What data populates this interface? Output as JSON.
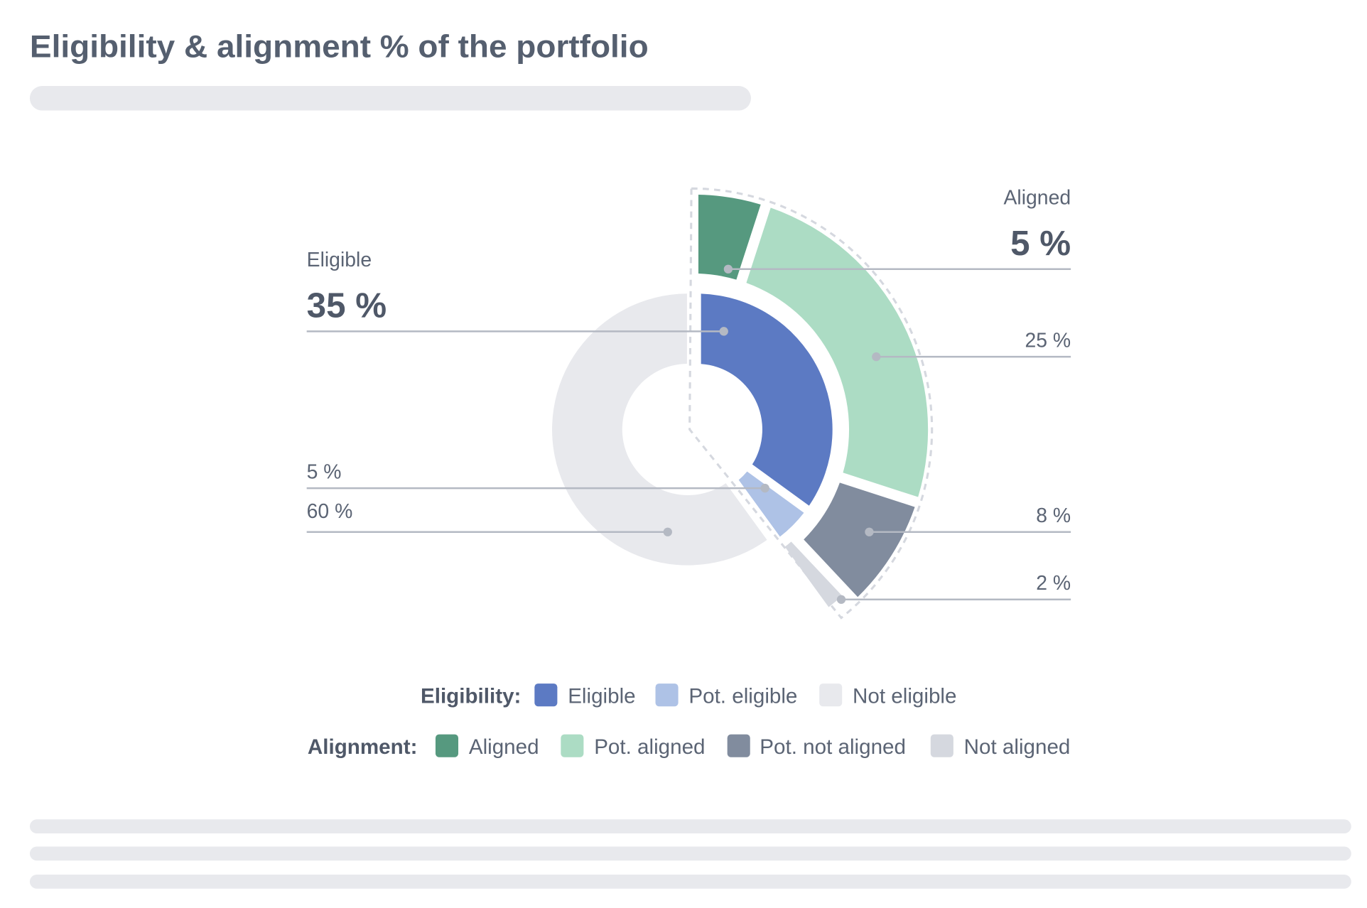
{
  "title": "Eligibility & alignment % of the portfolio",
  "chart_data": {
    "type": "pie",
    "subtype": "nested-donut",
    "title": "Eligibility & alignment % of the portfolio",
    "unit": "%",
    "eligibility": {
      "legend_title": "Eligibility:",
      "series": [
        {
          "name": "Eligible",
          "value": 35,
          "label": "35 %",
          "color": "#5c7ac3"
        },
        {
          "name": "Pot. eligible",
          "value": 5,
          "label": "5 %",
          "color": "#aec2e6"
        },
        {
          "name": "Not eligible",
          "value": 60,
          "label": "60 %",
          "color": "#e8e9ed"
        }
      ],
      "highlight_caption": "Eligible"
    },
    "alignment": {
      "legend_title": "Alignment:",
      "series": [
        {
          "name": "Aligned",
          "value": 5,
          "label": "5 %",
          "color": "#56997f"
        },
        {
          "name": "Pot. aligned",
          "value": 25,
          "label": "25 %",
          "color": "#acdcc4"
        },
        {
          "name": "Pot. not aligned",
          "value": 8,
          "label": "8 %",
          "color": "#818c9e"
        },
        {
          "name": "Not aligned",
          "value": 2,
          "label": "2 %",
          "color": "#d5d8df"
        }
      ],
      "highlight_caption": "Aligned"
    },
    "legend_placement": "bottom"
  }
}
